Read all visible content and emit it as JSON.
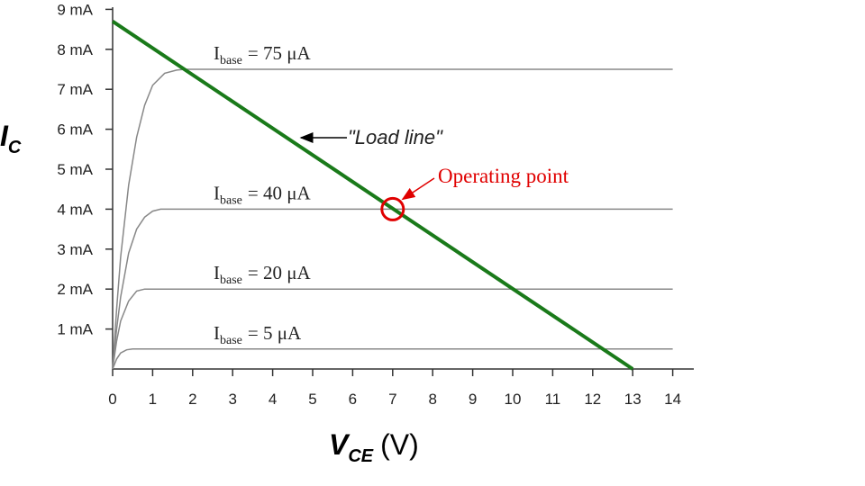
{
  "chart_data": {
    "type": "line",
    "y_label": [
      "I",
      "C"
    ],
    "x_label": [
      "V",
      "CE",
      "(V)"
    ],
    "xlim": [
      0,
      14.5
    ],
    "ylim": [
      0,
      9
    ],
    "xticks": [
      0,
      1,
      2,
      3,
      4,
      5,
      6,
      7,
      8,
      9,
      10,
      11,
      12,
      13,
      14
    ],
    "yticks": [
      {
        "value": 1,
        "label": "1 mA"
      },
      {
        "value": 2,
        "label": "2 mA"
      },
      {
        "value": 3,
        "label": "3 mA"
      },
      {
        "value": 4,
        "label": "4 mA"
      },
      {
        "value": 5,
        "label": "5 mA"
      },
      {
        "value": 6,
        "label": "6 mA"
      },
      {
        "value": 7,
        "label": "7 mA"
      },
      {
        "value": 8,
        "label": "8 mA"
      },
      {
        "value": 9,
        "label": "9 mA"
      }
    ],
    "series": [
      {
        "label": [
          "I",
          "base",
          "= 75 μA"
        ],
        "color": "#888888",
        "x": [
          0,
          0.1,
          0.2,
          0.4,
          0.6,
          0.8,
          1.0,
          1.3,
          1.6,
          1.8,
          14
        ],
        "values": [
          0,
          1.5,
          2.8,
          4.6,
          5.8,
          6.6,
          7.1,
          7.4,
          7.48,
          7.5,
          7.5
        ]
      },
      {
        "label": [
          "I",
          "base",
          "= 40 μA"
        ],
        "color": "#888888",
        "x": [
          0,
          0.1,
          0.2,
          0.4,
          0.6,
          0.8,
          1.0,
          1.2,
          14
        ],
        "values": [
          0,
          1.0,
          1.8,
          2.9,
          3.5,
          3.8,
          3.95,
          4,
          4
        ]
      },
      {
        "label": [
          "I",
          "base",
          "= 20 μA"
        ],
        "color": "#888888",
        "x": [
          0,
          0.1,
          0.2,
          0.4,
          0.6,
          0.8,
          14
        ],
        "values": [
          0,
          0.7,
          1.2,
          1.7,
          1.95,
          2,
          2
        ]
      },
      {
        "label": [
          "I",
          "base",
          "= 5 μA"
        ],
        "color": "#888888",
        "x": [
          0,
          0.1,
          0.2,
          0.35,
          0.5,
          14
        ],
        "values": [
          0,
          0.25,
          0.4,
          0.48,
          0.5,
          0.5
        ]
      },
      {
        "label": "\"Load line\"",
        "color": "#1a7a1a",
        "x": [
          0,
          13
        ],
        "values": [
          8.7,
          0
        ]
      }
    ],
    "operating_point": {
      "x": 7,
      "y": 4,
      "label": "Operating point",
      "color": "#e00000"
    }
  }
}
